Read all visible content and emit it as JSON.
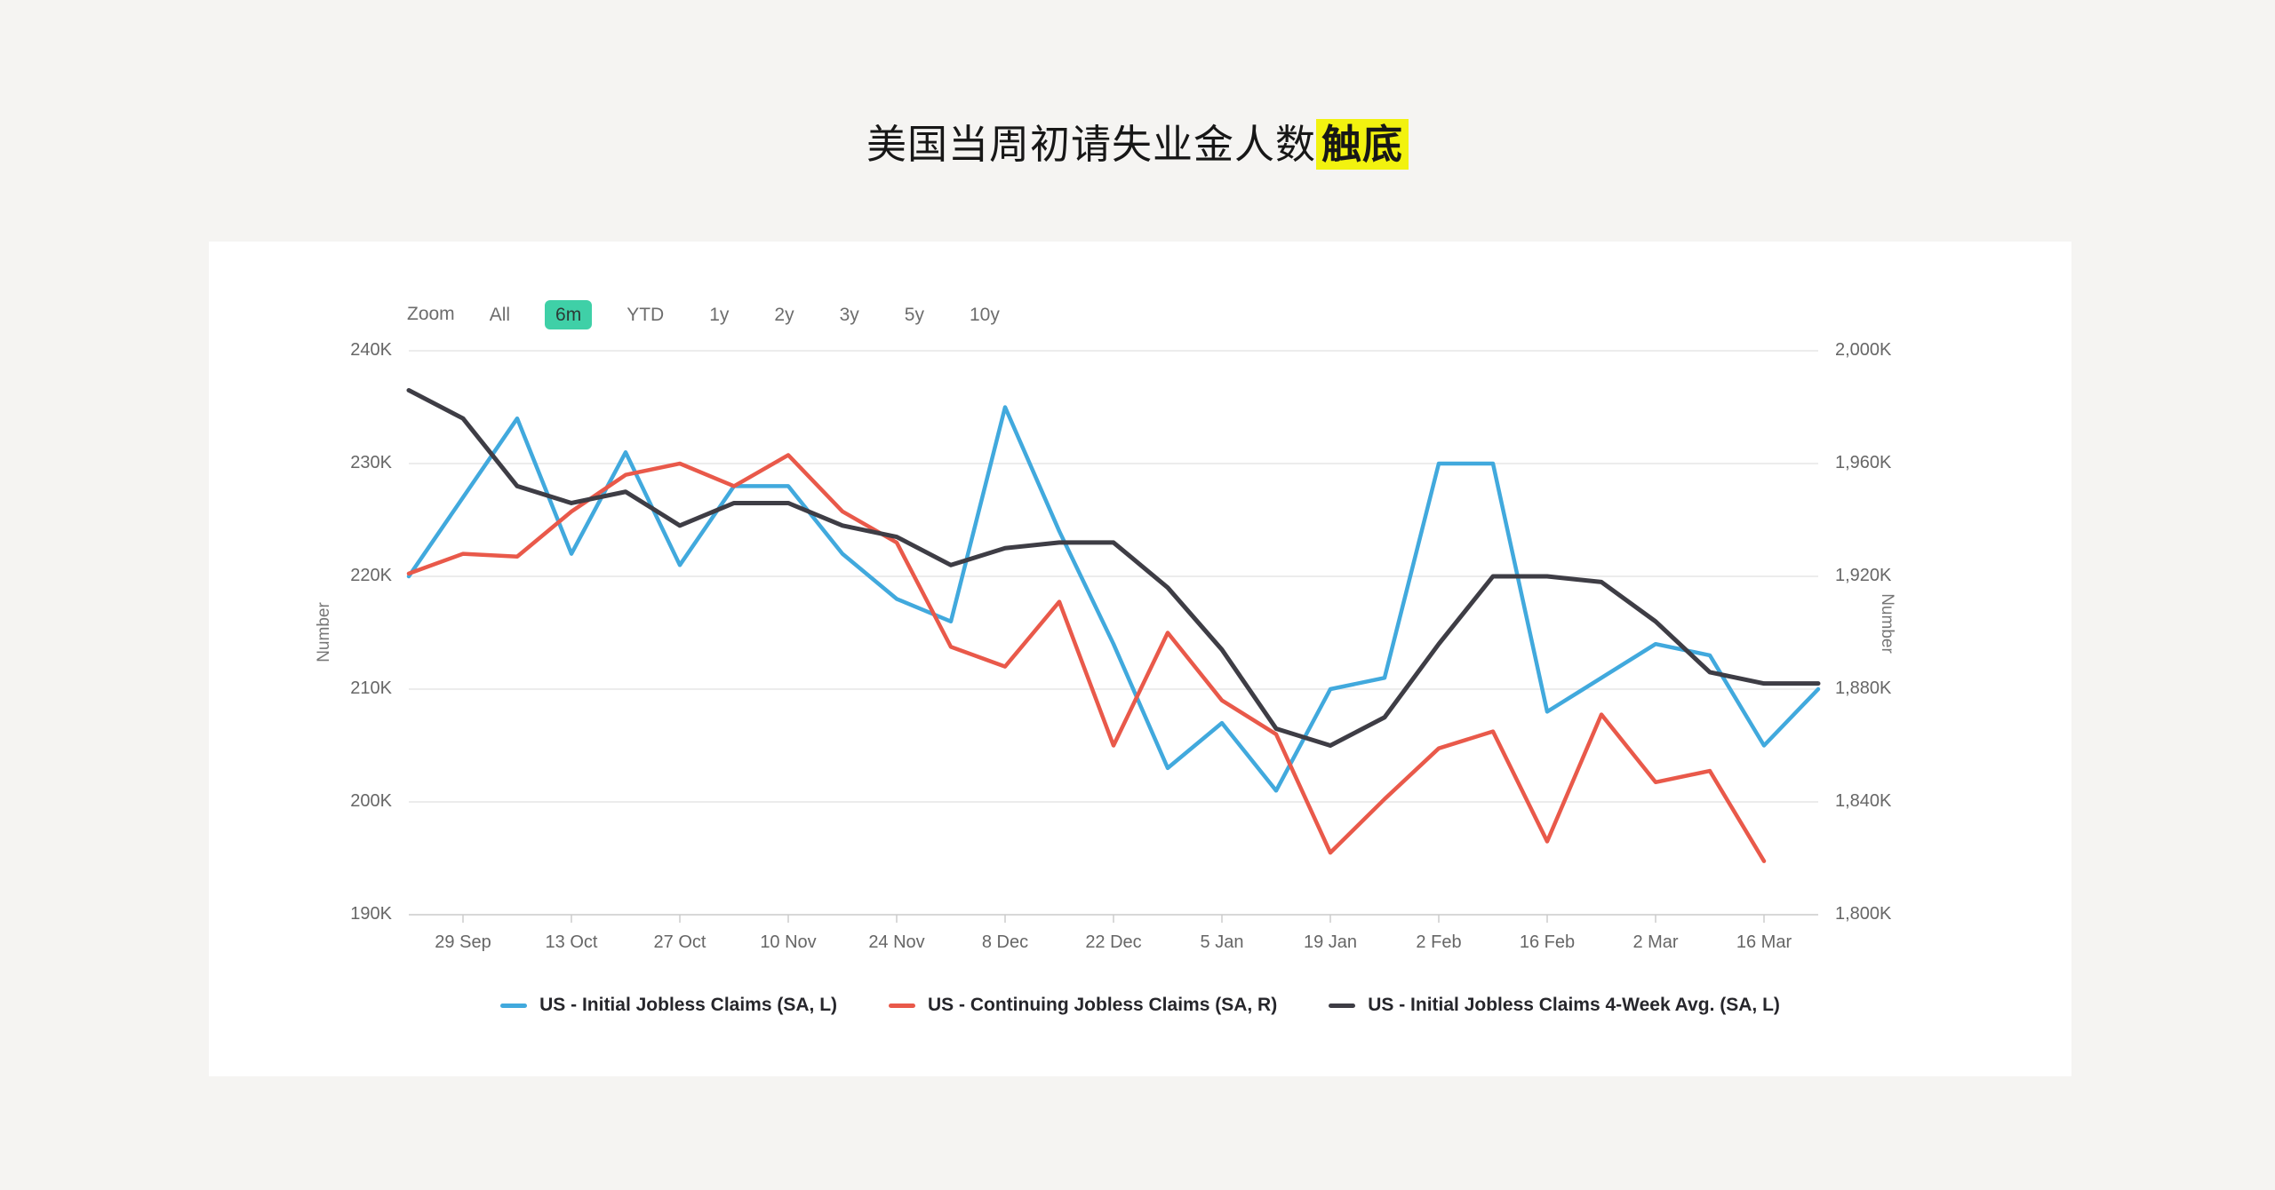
{
  "page": {
    "title_plain": "美国当周初请失业金人数",
    "title_highlight": "触底",
    "highlight_bg": "#f2f20f"
  },
  "toolbar": {
    "zoom_label": "Zoom",
    "buttons": [
      "All",
      "6m",
      "YTD",
      "1y",
      "2y",
      "3y",
      "5y",
      "10y"
    ],
    "active_button": "6m",
    "active_bg": "#3fd0a7"
  },
  "chart_data": {
    "type": "line",
    "x_tick_labels": [
      "29 Sep",
      "13 Oct",
      "27 Oct",
      "10 Nov",
      "24 Nov",
      "8 Dec",
      "22 Dec",
      "5 Jan",
      "19 Jan",
      "2 Feb",
      "16 Feb",
      "2 Mar",
      "16 Mar"
    ],
    "x_note": "weekly points; labeled ticks fall on every second point starting at point index 1",
    "n_points": 27,
    "grid_on": true,
    "gridline_color": "#e6e6e6",
    "axisline_color": "#cccccc",
    "left_axis": {
      "title": "Number",
      "tick_labels": [
        "240K",
        "230K",
        "220K",
        "210K",
        "200K",
        "190K"
      ],
      "tick_values": [
        240,
        230,
        220,
        210,
        200,
        190
      ],
      "min": 190,
      "max": 240,
      "unit": "K"
    },
    "right_axis": {
      "title": "Number",
      "tick_labels": [
        "2,000K",
        "1,960K",
        "1,920K",
        "1,880K",
        "1,840K",
        "1,800K"
      ],
      "tick_values": [
        2000,
        1960,
        1920,
        1880,
        1840,
        1800
      ],
      "min": 1800,
      "max": 2000,
      "unit": "K"
    },
    "legend_position": "bottom-center",
    "series": [
      {
        "name": "US - Initial Jobless Claims (SA, L)",
        "color": "#41a9dd",
        "axis": "left",
        "values": [
          220,
          227,
          234,
          222,
          231,
          221,
          228,
          228,
          222,
          218,
          216,
          235,
          224,
          214,
          203,
          207,
          201,
          210,
          211,
          230,
          230,
          208,
          211,
          214,
          213,
          205,
          210
        ]
      },
      {
        "name": "US - Continuing Jobless Claims (SA, R)",
        "color": "#e9594a",
        "axis": "right",
        "values": [
          1921,
          1928,
          1927,
          1943,
          1956,
          1960,
          1952,
          1963,
          1943,
          1932,
          1895,
          1888,
          1911,
          1860,
          1900,
          1876,
          1864,
          1822,
          1841,
          1859,
          1865,
          1826,
          1871,
          1847,
          1851,
          1819
        ]
      },
      {
        "name": "US - Initial Jobless Claims 4-Week Avg. (SA, L)",
        "color": "#3e3d45",
        "axis": "left",
        "values": [
          236.5,
          234,
          228,
          226.5,
          227.5,
          224.5,
          226.5,
          226.5,
          224.5,
          223.5,
          221,
          222.5,
          223,
          223,
          219,
          213.5,
          206.5,
          205,
          207.5,
          214,
          220,
          220,
          219.5,
          216,
          211.5,
          210.5,
          210.5
        ]
      }
    ]
  }
}
